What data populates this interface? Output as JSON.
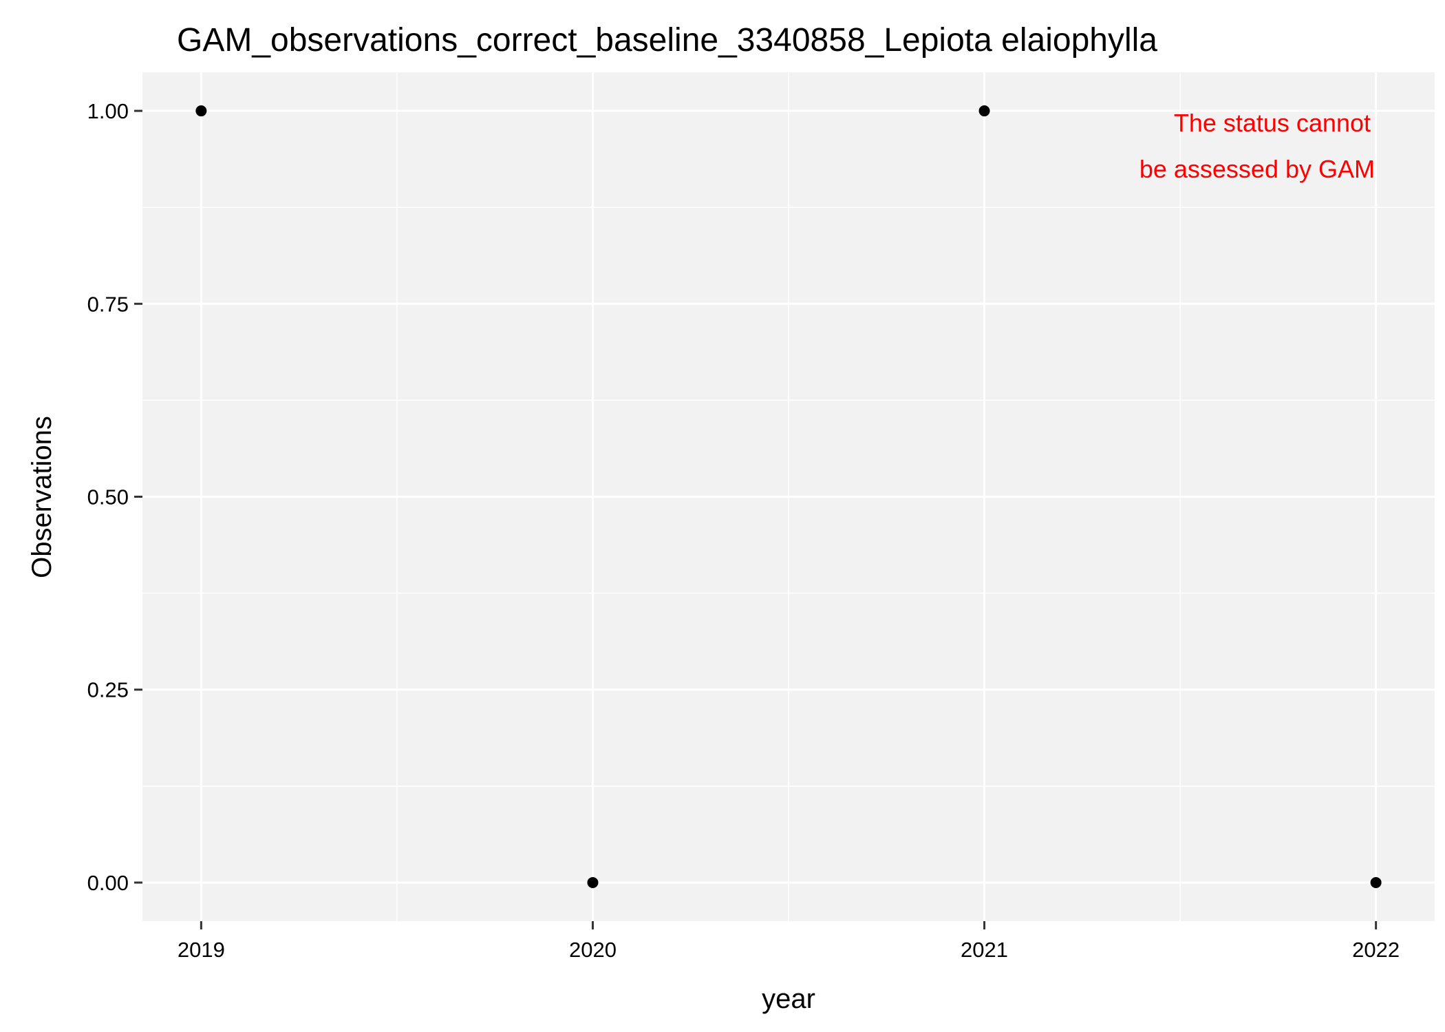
{
  "chart_data": {
    "type": "scatter",
    "title": "GAM_observations_correct_baseline_3340858_Lepiota elaiophylla",
    "xlabel": "year",
    "ylabel": "Observations",
    "x": [
      2019,
      2020,
      2021,
      2022
    ],
    "y": [
      1,
      0,
      1,
      0
    ],
    "xlim": [
      2018.85,
      2022.15
    ],
    "ylim": [
      -0.05,
      1.05
    ],
    "x_ticks": [
      2019,
      2020,
      2021,
      2022
    ],
    "x_tick_labels": [
      "2019",
      "2020",
      "2021",
      "2022"
    ],
    "y_ticks": [
      0,
      0.25,
      0.5,
      0.75,
      1
    ],
    "y_tick_labels": [
      "0.00",
      "0.25",
      "0.50",
      "0.75",
      "1.00"
    ],
    "grid": true,
    "legend": "none",
    "annotation": {
      "lines": [
        "The status cannot",
        "be assessed by GAM"
      ],
      "color": "#ff0000"
    },
    "colors": {
      "panel_background": "#f2f2f2",
      "grid": "#ffffff",
      "point": "#000000",
      "annotation": "#ff0000"
    }
  }
}
